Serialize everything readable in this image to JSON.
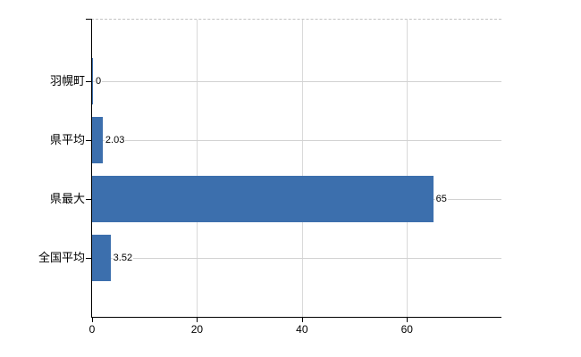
{
  "chart_data": {
    "type": "bar",
    "orientation": "horizontal",
    "categories": [
      "羽幌町",
      "県平均",
      "県最大",
      "全国平均"
    ],
    "values": [
      0,
      2.03,
      65,
      3.52
    ],
    "value_labels": [
      "0",
      "2.03",
      "65",
      "3.52"
    ],
    "title": "",
    "xlabel": "",
    "ylabel": "",
    "xlim": [
      0,
      78
    ],
    "xticks": [
      0,
      20,
      40,
      60
    ],
    "grid": "on",
    "legend": "none",
    "colors": {
      "bar": "#3c6fad",
      "vertical_grid": "#d9d9d9",
      "horizontal_grid": "#d2d2d2",
      "top_border": "#c3c3c3",
      "axis": "#000000",
      "text": "#000000"
    }
  }
}
